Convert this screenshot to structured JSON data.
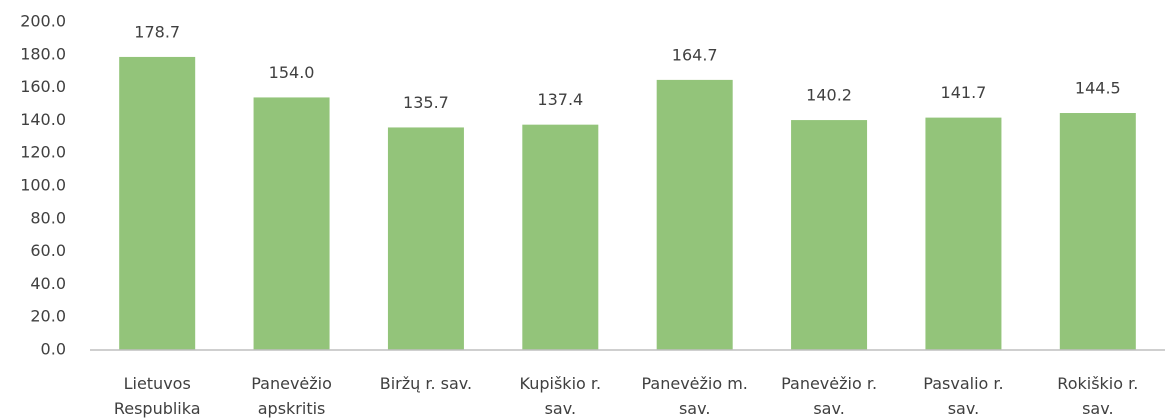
{
  "chart_data": {
    "type": "bar",
    "categories": [
      "Lietuvos Respublika",
      "Panevėžio apskritis",
      "Biržų r. sav.",
      "Kupiškio r. sav.",
      "Panevėžio m. sav.",
      "Panevėžio r. sav.",
      "Pasvalio r. sav.",
      "Rokiškio r. sav."
    ],
    "values": [
      178.7,
      154.0,
      135.7,
      137.4,
      164.7,
      140.2,
      141.7,
      144.5
    ],
    "value_labels": [
      "178.7",
      "154.0",
      "135.7",
      "137.4",
      "164.7",
      "140.2",
      "141.7",
      "144.5"
    ],
    "color": "#93c47a",
    "ylim": [
      0,
      200
    ],
    "yticks": [
      {
        "value": 0,
        "label": "0.0"
      },
      {
        "value": 20,
        "label": "20.0"
      },
      {
        "value": 40,
        "label": "40.0"
      },
      {
        "value": 60,
        "label": "60.0"
      },
      {
        "value": 80,
        "label": "80.0"
      },
      {
        "value": 100,
        "label": "100.0"
      },
      {
        "value": 120,
        "label": "120.0"
      },
      {
        "value": 140,
        "label": "140.0"
      },
      {
        "value": 160,
        "label": "160.0"
      },
      {
        "value": 180,
        "label": "180.0"
      },
      {
        "value": 200,
        "label": "200.0"
      }
    ],
    "grid": false
  }
}
